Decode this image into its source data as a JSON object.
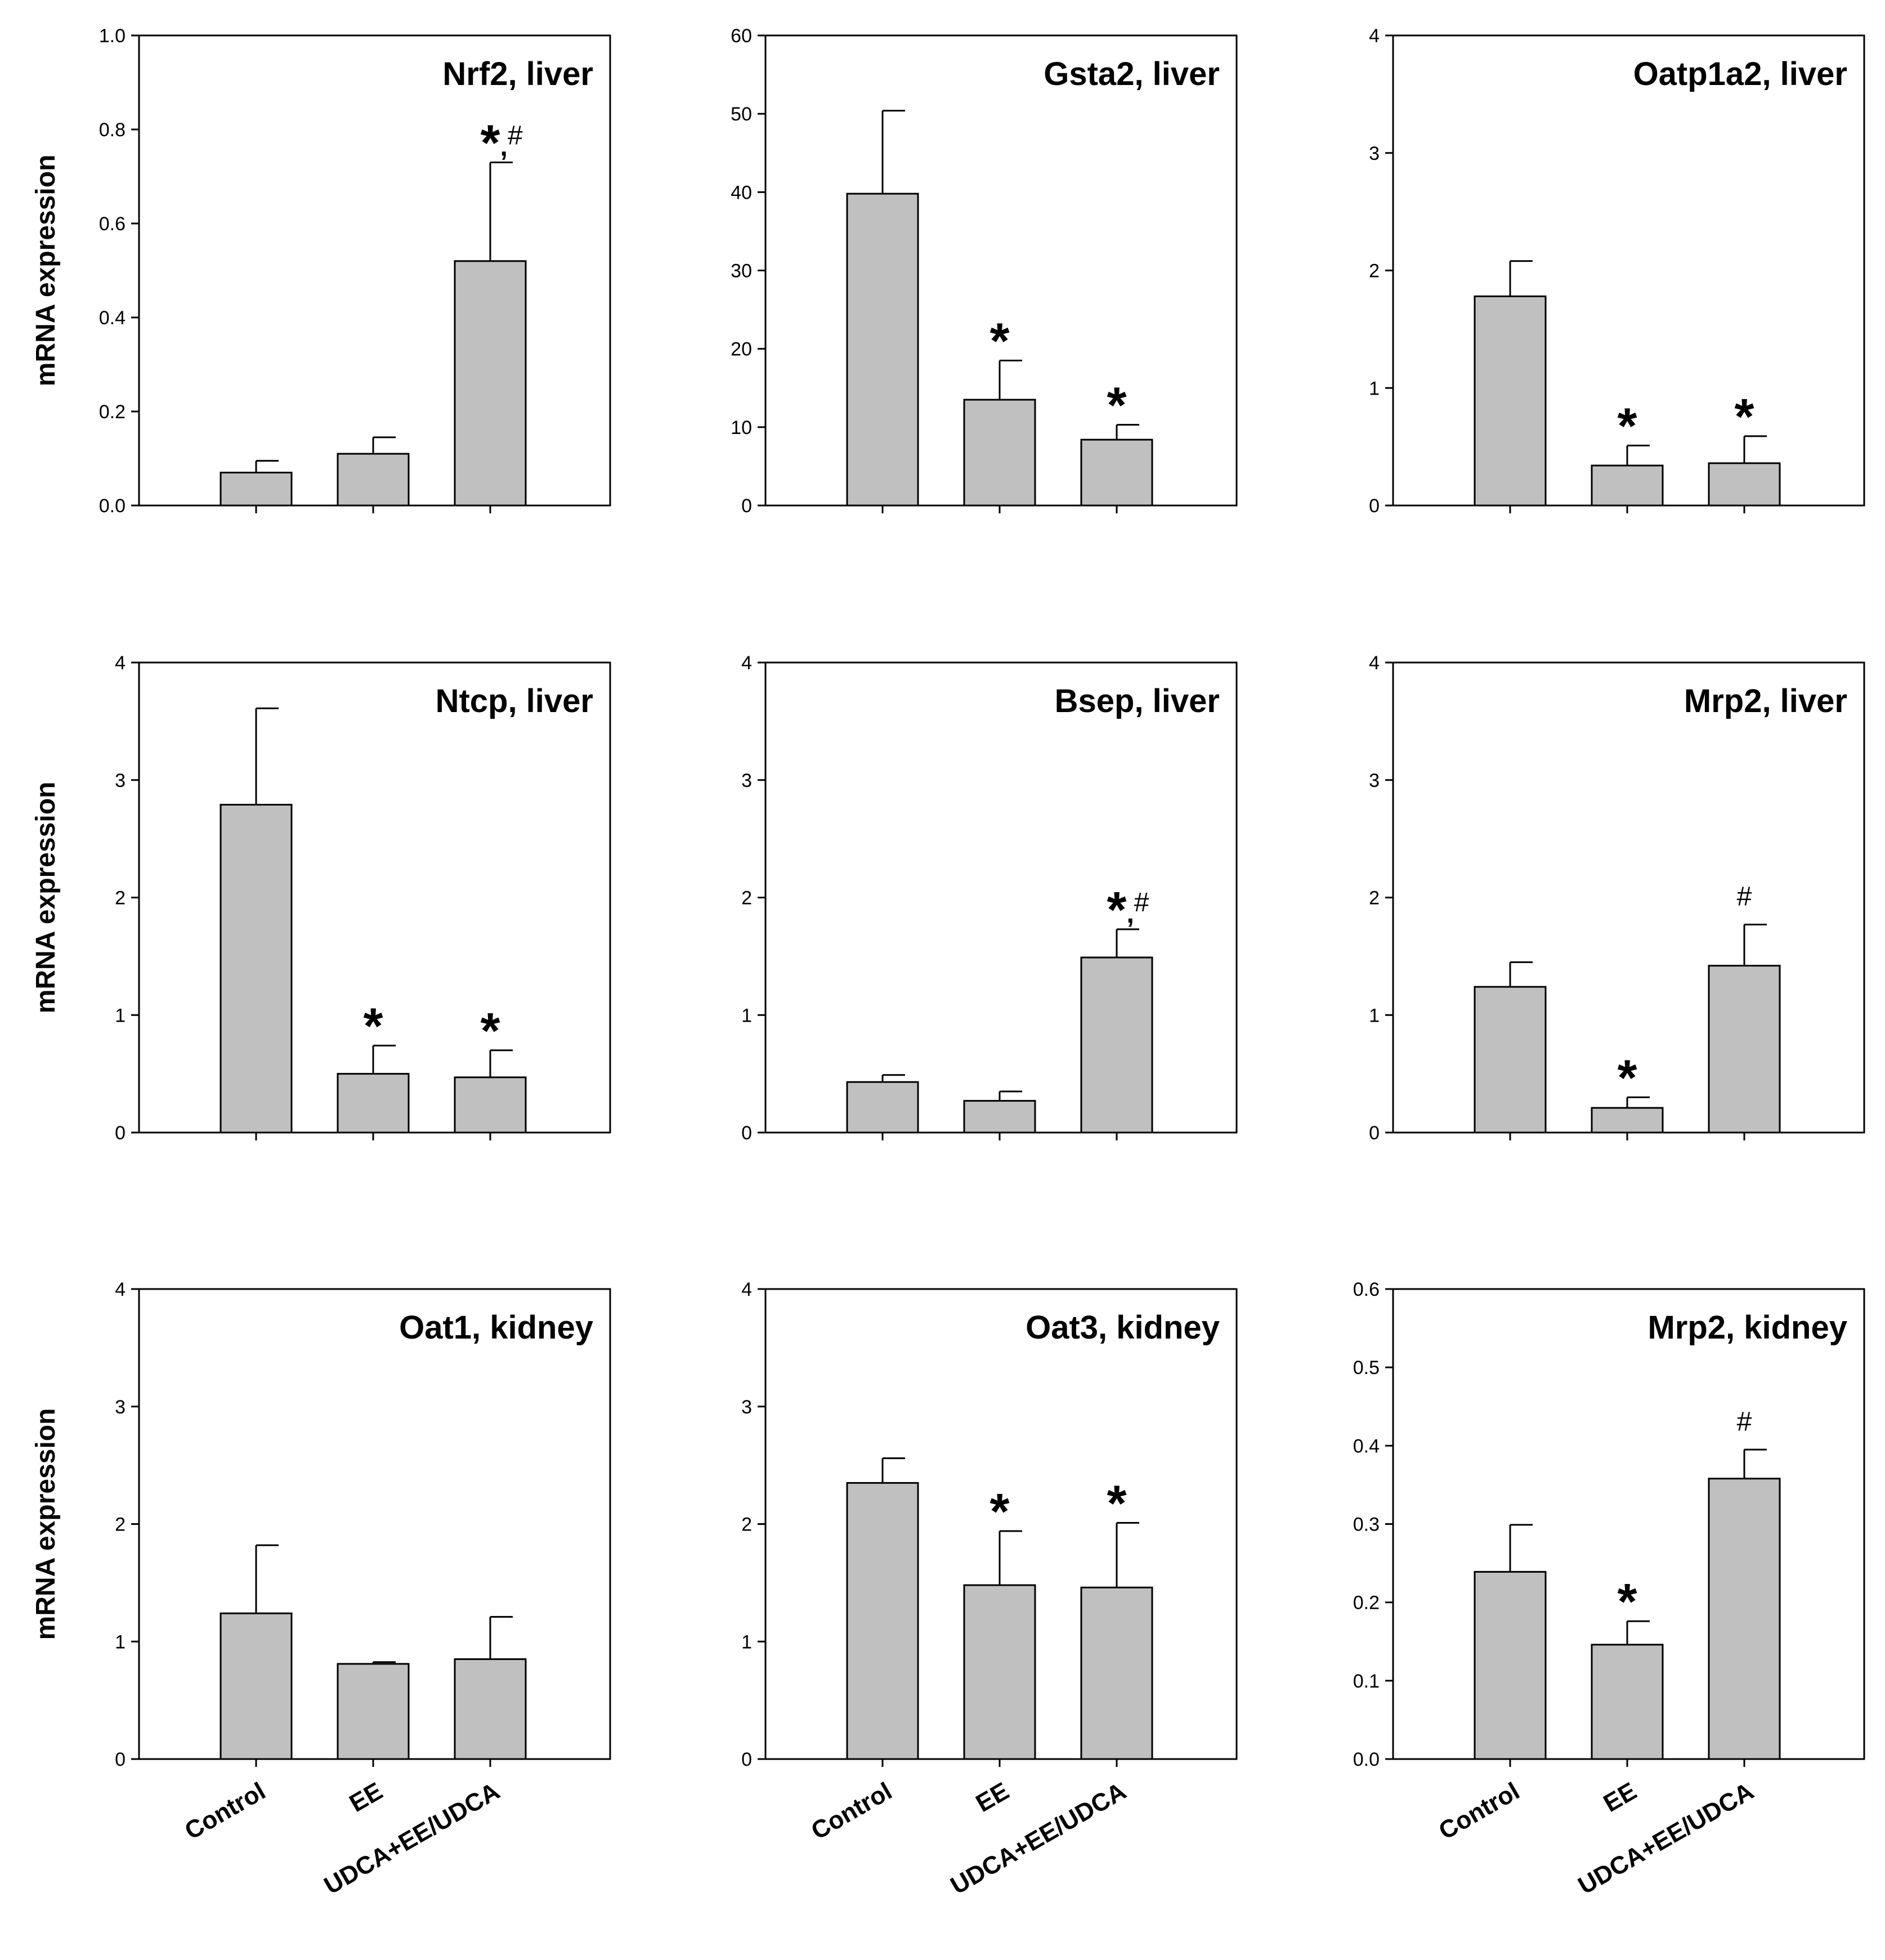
{
  "chart_data": [
    {
      "type": "bar",
      "title": "Nrf2, liver",
      "ylabel": "mRNA expression",
      "categories": [
        "Control",
        "EE",
        "UDCA+EE/UDCA"
      ],
      "values": [
        0.07,
        0.11,
        0.52
      ],
      "errors": [
        0.025,
        0.035,
        0.21
      ],
      "ylim": [
        0,
        1.0
      ],
      "yticks": [
        "0.0",
        "0.2",
        "0.4",
        "0.6",
        "0.8",
        "1.0"
      ],
      "annotations": [
        "",
        "",
        "*,#"
      ]
    },
    {
      "type": "bar",
      "title": "Gsta2, liver",
      "ylabel": "",
      "categories": [
        "Control",
        "EE",
        "UDCA+EE/UDCA"
      ],
      "values": [
        39.8,
        13.5,
        8.4
      ],
      "errors": [
        10.6,
        5.0,
        1.9
      ],
      "ylim": [
        0,
        60
      ],
      "yticks": [
        "0",
        "10",
        "20",
        "30",
        "40",
        "50",
        "60"
      ],
      "annotations": [
        "",
        "*",
        "*"
      ]
    },
    {
      "type": "bar",
      "title": "Oatp1a2, liver",
      "ylabel": "",
      "categories": [
        "Control",
        "EE",
        "UDCA+EE/UDCA"
      ],
      "values": [
        1.78,
        0.34,
        0.36
      ],
      "errors": [
        0.3,
        0.17,
        0.23
      ],
      "ylim": [
        0,
        4
      ],
      "yticks": [
        "0",
        "1",
        "2",
        "3",
        "4"
      ],
      "annotations": [
        "",
        "*",
        "*"
      ]
    },
    {
      "type": "bar",
      "title": "Ntcp, liver",
      "ylabel": "mRNA expression",
      "categories": [
        "Control",
        "EE",
        "UDCA+EE/UDCA"
      ],
      "values": [
        2.79,
        0.5,
        0.47
      ],
      "errors": [
        0.82,
        0.24,
        0.23
      ],
      "ylim": [
        0,
        4
      ],
      "yticks": [
        "0",
        "1",
        "2",
        "3",
        "4"
      ],
      "annotations": [
        "",
        "*",
        "*"
      ]
    },
    {
      "type": "bar",
      "title": "Bsep, liver",
      "ylabel": "",
      "categories": [
        "Control",
        "EE",
        "UDCA+EE/UDCA"
      ],
      "values": [
        0.43,
        0.27,
        1.49
      ],
      "errors": [
        0.06,
        0.08,
        0.24
      ],
      "ylim": [
        0,
        4
      ],
      "yticks": [
        "0",
        "1",
        "2",
        "3",
        "4"
      ],
      "annotations": [
        "",
        "",
        "*,#"
      ]
    },
    {
      "type": "bar",
      "title": "Mrp2, liver",
      "ylabel": "",
      "categories": [
        "Control",
        "EE",
        "UDCA+EE/UDCA"
      ],
      "values": [
        1.24,
        0.21,
        1.42
      ],
      "errors": [
        0.21,
        0.09,
        0.35
      ],
      "ylim": [
        0,
        4
      ],
      "yticks": [
        "0",
        "1",
        "2",
        "3",
        "4"
      ],
      "annotations": [
        "",
        "*",
        "#"
      ]
    },
    {
      "type": "bar",
      "title": "Oat1, kidney",
      "ylabel": "mRNA expression",
      "categories": [
        "Control",
        "EE",
        "UDCA+EE/UDCA"
      ],
      "values": [
        1.24,
        0.81,
        0.85
      ],
      "errors": [
        0.58,
        0.015,
        0.36
      ],
      "ylim": [
        0,
        4
      ],
      "yticks": [
        "0",
        "1",
        "2",
        "3",
        "4"
      ],
      "annotations": [
        "",
        "",
        ""
      ]
    },
    {
      "type": "bar",
      "title": "Oat3, kidney",
      "ylabel": "",
      "categories": [
        "Control",
        "EE",
        "UDCA+EE/UDCA"
      ],
      "values": [
        2.35,
        1.48,
        1.46
      ],
      "errors": [
        0.21,
        0.46,
        0.55
      ],
      "ylim": [
        0,
        4
      ],
      "yticks": [
        "0",
        "1",
        "2",
        "3",
        "4"
      ],
      "annotations": [
        "",
        "*",
        "*"
      ]
    },
    {
      "type": "bar",
      "title": "Mrp2, kidney",
      "ylabel": "",
      "categories": [
        "Control",
        "EE",
        "UDCA+EE/UDCA"
      ],
      "values": [
        0.239,
        0.146,
        0.358
      ],
      "errors": [
        0.06,
        0.03,
        0.037
      ],
      "ylim": [
        0,
        0.6
      ],
      "yticks": [
        "0.0",
        "0.1",
        "0.2",
        "0.3",
        "0.4",
        "0.5",
        "0.6"
      ],
      "annotations": [
        "",
        "*",
        "#"
      ]
    }
  ]
}
